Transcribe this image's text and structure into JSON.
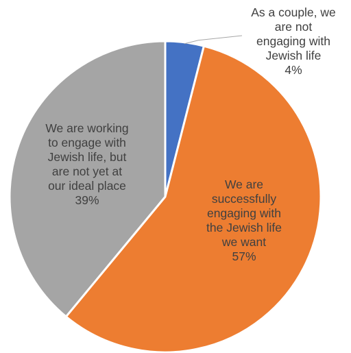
{
  "chart_data": {
    "type": "pie",
    "title": "",
    "start_angle_deg": 0,
    "direction": "clockwise",
    "slices": [
      {
        "label_lines": [
          "As a couple, we",
          "are not",
          "engaging with",
          "Jewish life"
        ],
        "value_label": "4%",
        "value": 4,
        "color": "#4472C4",
        "label_color": "#404040"
      },
      {
        "label_lines": [
          "We are",
          "successfully",
          "engaging with",
          "the Jewish life",
          "we want"
        ],
        "value_label": "57%",
        "value": 57,
        "color": "#ED7D31",
        "label_color": "#404040"
      },
      {
        "label_lines": [
          "We are working",
          "to engage with",
          "Jewish life, but",
          "are not yet at",
          "our ideal place"
        ],
        "value_label": "39%",
        "value": 39,
        "color": "#A5A5A5",
        "label_color": "#404040"
      }
    ],
    "slice_border_color": "#FFFFFF",
    "leader_line_color": "#A6A6A6"
  }
}
